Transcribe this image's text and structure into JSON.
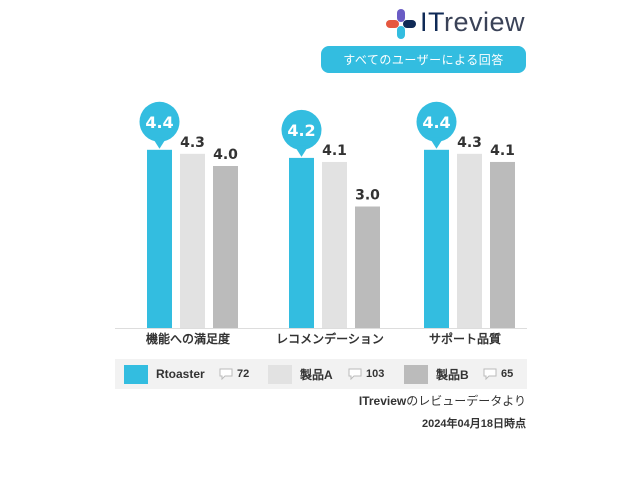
{
  "brand": {
    "logo_prefix": "IT",
    "logo_suffix": "review"
  },
  "subtitle": "すべてのユーザーによる回答",
  "colors": {
    "rtoaster": "#33bde0",
    "product_a": "#e2e2e2",
    "product_b": "#bbbbbb",
    "text": "#222222"
  },
  "chart_data": {
    "type": "bar",
    "categories": [
      "機能への満足度",
      "レコメンデーション",
      "サポート品質"
    ],
    "series": [
      {
        "name": "Rtoaster",
        "values": [
          4.4,
          4.2,
          4.4
        ]
      },
      {
        "name": "製品A",
        "values": [
          4.3,
          4.1,
          4.3
        ]
      },
      {
        "name": "製品B",
        "values": [
          4.0,
          3.0,
          4.1
        ]
      }
    ],
    "value_labels": {
      "Rtoaster": [
        "4.4",
        "4.2",
        "4.4"
      ],
      "製品A": [
        "4.3",
        "4.1",
        "4.3"
      ],
      "製品B": [
        "4.0",
        "3.0",
        "4.1"
      ]
    },
    "ylim": [
      0,
      5
    ],
    "grid": false,
    "legend_position": "bottom",
    "title": "",
    "xlabel": "",
    "ylabel": ""
  },
  "legend": [
    {
      "label": "Rtoaster",
      "count": "72"
    },
    {
      "label": "製品A",
      "count": "103"
    },
    {
      "label": "製品B",
      "count": "65"
    }
  ],
  "source": {
    "brand": "ITreview",
    "text": "のレビューデータより"
  },
  "date": "2024年04月18日時点"
}
